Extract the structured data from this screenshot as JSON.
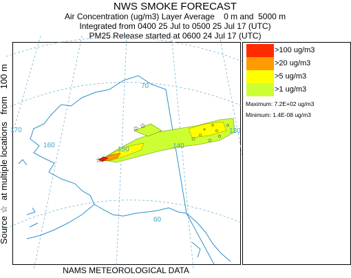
{
  "header": {
    "title": "NWS SMOKE FORECAST",
    "line1": "Air Concentration (ug/m3) Layer Average    0 m and  5000 m",
    "line2": "Integrated from 0400 25 Jul to 0500 25 Jul 17 (UTC)",
    "line3": "PM25 Release started at 0600 24 Jul 17 (UTC)"
  },
  "side_label": "Source ☆  at multiple locations   from   100 m",
  "footer": "NAMS METEOROLOGICAL DATA",
  "map": {
    "graticule_labels": [
      "70",
      "170",
      "160",
      "150",
      "140",
      "130",
      "60"
    ]
  },
  "legend": {
    "items": [
      {
        "label": ">100 ug/m3",
        "color": "#ff2a00"
      },
      {
        "label": ">20 ug/m3",
        "color": "#ff9a00"
      },
      {
        "label": ">5 ug/m3",
        "color": "#ffff00"
      },
      {
        "label": ">1 ug/m3",
        "color": "#ccff33"
      }
    ],
    "maximum": "Maximum: 7.2E+02 ug/m3",
    "minimum": "Minimum: 1.4E-08 ug/m3"
  },
  "colors": {
    "coastline": "#2a8fc8",
    "graticule": "#6fb3d8",
    "boundary": "#2a8fc8"
  }
}
